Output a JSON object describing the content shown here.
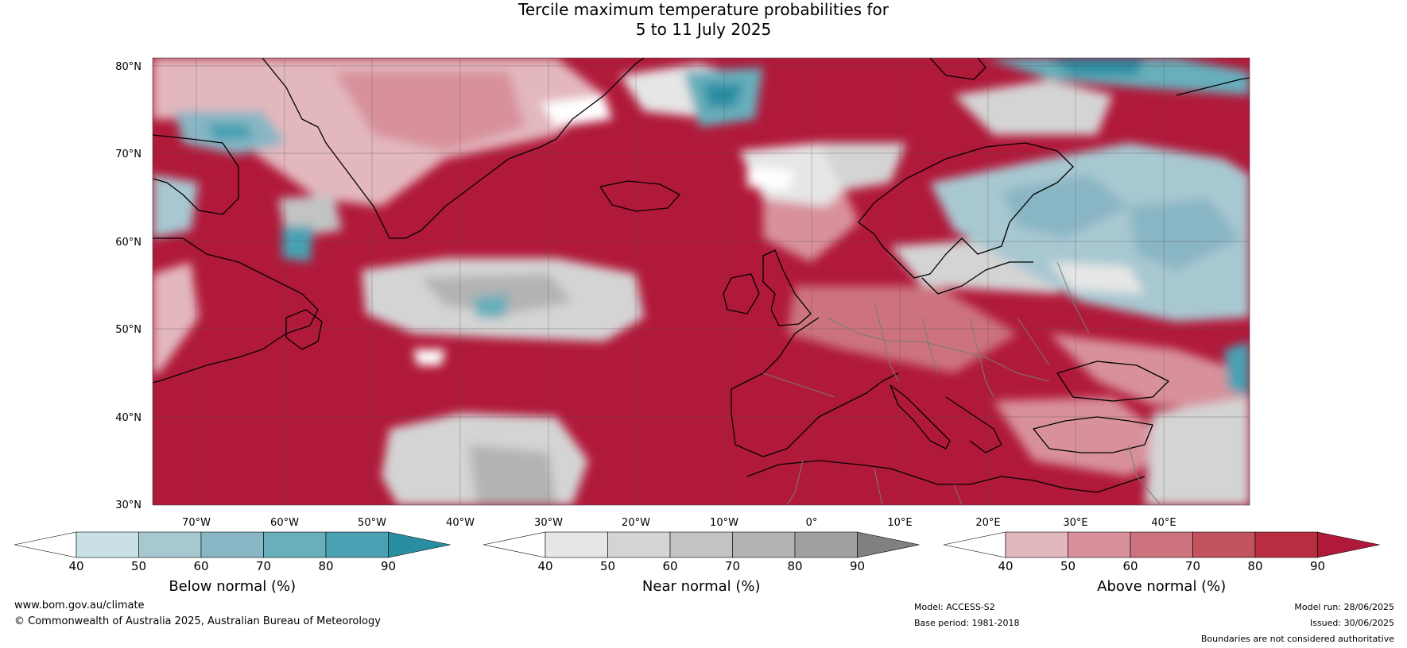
{
  "title": {
    "line1": "Tercile maximum temperature probabilities for",
    "line2": "5 to 11 July 2025"
  },
  "map": {
    "lat_labels": [
      "80°N",
      "70°N",
      "60°N",
      "50°N",
      "40°N",
      "30°N"
    ],
    "lon_labels": [
      "70°W",
      "60°W",
      "50°W",
      "40°W",
      "30°W",
      "20°W",
      "10°W",
      "0°",
      "10°E",
      "20°E",
      "30°E",
      "40°E"
    ]
  },
  "legends": [
    {
      "label": "Below normal (%)",
      "ticks": [
        "40",
        "50",
        "60",
        "70",
        "80",
        "90"
      ],
      "colors": [
        "#ffffff",
        "#c9e0e7",
        "#a7c8d1",
        "#89b6c4",
        "#68aebb",
        "#4aa1b3",
        "#2a8ea3"
      ]
    },
    {
      "label": "Near normal (%)",
      "ticks": [
        "40",
        "50",
        "60",
        "70",
        "80",
        "90"
      ],
      "colors": [
        "#ffffff",
        "#e6e6e6",
        "#d4d4d4",
        "#c3c3c3",
        "#b3b3b3",
        "#a0a0a0",
        "#808080"
      ]
    },
    {
      "label": "Above normal (%)",
      "ticks": [
        "40",
        "50",
        "60",
        "70",
        "80",
        "90"
      ],
      "colors": [
        "#ffffff",
        "#e3b7be",
        "#d8919b",
        "#cc737e",
        "#c2535f",
        "#b82e40",
        "#b1193a"
      ]
    }
  ],
  "footer": {
    "website": "www.bom.gov.au/climate",
    "copyright": "© Commonwealth of Australia 2025, Australian Bureau of Meteorology",
    "model": "Model: ACCESS-S2",
    "base_period": "Base period: 1981-2018",
    "model_run": "Model run: 28/06/2025",
    "issued": "Issued: 30/06/2025",
    "disclaimer": "Boundaries are not considered authoritative"
  }
}
